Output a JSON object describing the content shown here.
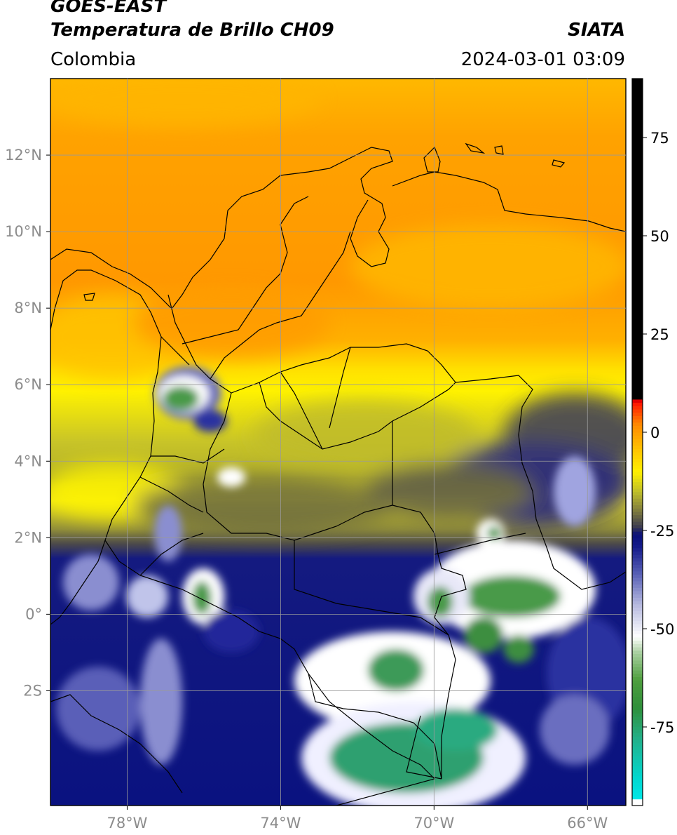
{
  "header": {
    "satellite": "GOES-EAST",
    "product": "Temperatura de Brillo CH09",
    "region": "Colombia",
    "organization": "SIATA",
    "datetime": "2024-03-01 03:09"
  },
  "map": {
    "lat_range": [
      -5,
      14
    ],
    "lon_range": [
      -80,
      -65
    ],
    "lat_ticks": [
      {
        "value": 12,
        "label": "12°N"
      },
      {
        "value": 10,
        "label": "10°N"
      },
      {
        "value": 8,
        "label": "8°N"
      },
      {
        "value": 6,
        "label": "6°N"
      },
      {
        "value": 4,
        "label": "4°N"
      },
      {
        "value": 2,
        "label": "2°N"
      },
      {
        "value": 0,
        "label": "0°"
      },
      {
        "value": -2,
        "label": "2S"
      }
    ],
    "lon_ticks": [
      {
        "value": -78,
        "label": "78°W"
      },
      {
        "value": -74,
        "label": "74°W"
      },
      {
        "value": -70,
        "label": "70°W"
      },
      {
        "value": -66,
        "label": "66°W"
      }
    ],
    "gridlines": true,
    "tick_label_color": "#8c8c8c",
    "grid_color": "#9a9a9a"
  },
  "colorbar": {
    "range": [
      -95,
      90
    ],
    "ticks": [
      {
        "value": 75,
        "label": "75"
      },
      {
        "value": 50,
        "label": "50"
      },
      {
        "value": 25,
        "label": "25"
      },
      {
        "value": 0,
        "label": "0"
      },
      {
        "value": -25,
        "label": "-25"
      },
      {
        "value": -50,
        "label": "-50"
      },
      {
        "value": -75,
        "label": "-75"
      }
    ],
    "stops": [
      {
        "value": -95,
        "color": "#ffffff"
      },
      {
        "value": -93,
        "color": "#ffffff"
      },
      {
        "value": -92.9,
        "color": "#00e5e5"
      },
      {
        "value": -88,
        "color": "#00d8d0"
      },
      {
        "value": -78,
        "color": "#22b08a"
      },
      {
        "value": -70,
        "color": "#2f8f3a"
      },
      {
        "value": -63,
        "color": "#4e9e3e"
      },
      {
        "value": -56,
        "color": "#a8cfa0"
      },
      {
        "value": -52,
        "color": "#ffffff"
      },
      {
        "value": -44,
        "color": "#b8bbe0"
      },
      {
        "value": -36,
        "color": "#5860b5"
      },
      {
        "value": -29,
        "color": "#141a8a"
      },
      {
        "value": -26,
        "color": "#0a0f7a"
      },
      {
        "value": -24,
        "color": "#3c3c50"
      },
      {
        "value": -20,
        "color": "#7d7a3e"
      },
      {
        "value": -15,
        "color": "#bfbf2a"
      },
      {
        "value": -10,
        "color": "#fff000"
      },
      {
        "value": -4,
        "color": "#ffc000"
      },
      {
        "value": 2,
        "color": "#ff8a00"
      },
      {
        "value": 7,
        "color": "#ff2000"
      },
      {
        "value": 8,
        "color": "#ff0000"
      },
      {
        "value": 8.1,
        "color": "#000000"
      },
      {
        "value": 90,
        "color": "#000000"
      }
    ]
  }
}
